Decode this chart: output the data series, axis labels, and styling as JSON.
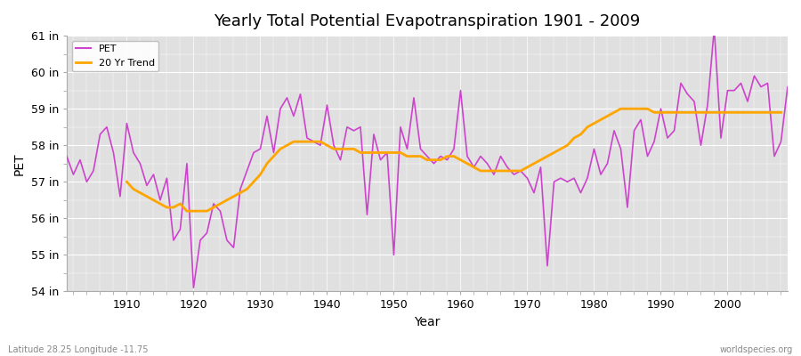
{
  "title": "Yearly Total Potential Evapotranspiration 1901 - 2009",
  "xlabel": "Year",
  "ylabel": "PET",
  "subtitle_left": "Latitude 28.25 Longitude -11.75",
  "subtitle_right": "worldspecies.org",
  "legend_pet": "PET",
  "legend_trend": "20 Yr Trend",
  "pet_color": "#CC44CC",
  "trend_color": "#FFA500",
  "fig_bg_color": "#FFFFFF",
  "plot_bg_color": "#E0E0E0",
  "grid_color": "#FFFFFF",
  "ylim": [
    54,
    61
  ],
  "yticks": [
    54,
    55,
    56,
    57,
    58,
    59,
    60,
    61
  ],
  "ytick_labels": [
    "54 in",
    "55 in",
    "56 in",
    "57 in",
    "58 in",
    "59 in",
    "60 in",
    "61 in"
  ],
  "xmin": 1901,
  "xmax": 2009,
  "xticks": [
    1910,
    1920,
    1930,
    1940,
    1950,
    1960,
    1970,
    1980,
    1990,
    2000
  ],
  "years": [
    1901,
    1902,
    1903,
    1904,
    1905,
    1906,
    1907,
    1908,
    1909,
    1910,
    1911,
    1912,
    1913,
    1914,
    1915,
    1916,
    1917,
    1918,
    1919,
    1920,
    1921,
    1922,
    1923,
    1924,
    1925,
    1926,
    1927,
    1928,
    1929,
    1930,
    1931,
    1932,
    1933,
    1934,
    1935,
    1936,
    1937,
    1938,
    1939,
    1940,
    1941,
    1942,
    1943,
    1944,
    1945,
    1946,
    1947,
    1948,
    1949,
    1950,
    1951,
    1952,
    1953,
    1954,
    1955,
    1956,
    1957,
    1958,
    1959,
    1960,
    1961,
    1962,
    1963,
    1964,
    1965,
    1966,
    1967,
    1968,
    1969,
    1970,
    1971,
    1972,
    1973,
    1974,
    1975,
    1976,
    1977,
    1978,
    1979,
    1980,
    1981,
    1982,
    1983,
    1984,
    1985,
    1986,
    1987,
    1988,
    1989,
    1990,
    1991,
    1992,
    1993,
    1994,
    1995,
    1996,
    1997,
    1998,
    1999,
    2000,
    2001,
    2002,
    2003,
    2004,
    2005,
    2006,
    2007,
    2008,
    2009
  ],
  "pet_values": [
    57.7,
    57.2,
    57.6,
    57.0,
    57.3,
    58.3,
    58.5,
    57.8,
    56.6,
    58.6,
    57.8,
    57.5,
    56.9,
    57.2,
    56.5,
    57.1,
    55.4,
    55.7,
    57.5,
    54.1,
    55.4,
    55.6,
    56.4,
    56.2,
    55.4,
    55.2,
    56.8,
    57.3,
    57.8,
    57.9,
    58.8,
    57.8,
    59.0,
    59.3,
    58.8,
    59.4,
    58.2,
    58.1,
    58.0,
    59.1,
    58.0,
    57.6,
    58.5,
    58.4,
    58.5,
    56.1,
    58.3,
    57.6,
    57.8,
    55.0,
    58.5,
    57.9,
    59.3,
    57.9,
    57.7,
    57.5,
    57.7,
    57.6,
    57.9,
    59.5,
    57.7,
    57.4,
    57.7,
    57.5,
    57.2,
    57.7,
    57.4,
    57.2,
    57.3,
    57.1,
    56.7,
    57.4,
    54.7,
    57.0,
    57.1,
    57.0,
    57.1,
    56.7,
    57.1,
    57.9,
    57.2,
    57.5,
    58.4,
    57.9,
    56.3,
    58.4,
    58.7,
    57.7,
    58.1,
    59.0,
    58.2,
    58.4,
    59.7,
    59.4,
    59.2,
    58.0,
    59.1,
    61.2,
    58.2,
    59.5,
    59.5,
    59.7,
    59.2,
    59.9,
    59.6,
    59.7,
    57.7,
    58.1,
    59.6
  ],
  "trend_start_year": 1910,
  "trend_values": [
    57.0,
    56.8,
    56.7,
    56.6,
    56.5,
    56.4,
    56.3,
    56.3,
    56.4,
    56.2,
    56.2,
    56.2,
    56.2,
    56.3,
    56.4,
    56.5,
    56.6,
    56.7,
    56.8,
    57.0,
    57.2,
    57.5,
    57.7,
    57.9,
    58.0,
    58.1,
    58.1,
    58.1,
    58.1,
    58.1,
    58.0,
    57.9,
    57.9,
    57.9,
    57.9,
    57.8,
    57.8,
    57.8,
    57.8,
    57.8,
    57.8,
    57.8,
    57.7,
    57.7,
    57.7,
    57.6,
    57.6,
    57.6,
    57.7,
    57.7,
    57.6,
    57.5,
    57.4,
    57.3,
    57.3,
    57.3,
    57.3,
    57.3,
    57.3,
    57.3,
    57.4,
    57.5,
    57.6,
    57.7,
    57.8,
    57.9,
    58.0,
    58.2,
    58.3,
    58.5,
    58.6,
    58.7,
    58.8,
    58.9,
    59.0,
    59.0,
    59.0,
    59.0,
    59.0,
    58.9,
    58.9,
    58.9,
    58.9,
    58.9,
    58.9,
    58.9,
    58.9,
    58.9,
    58.9,
    58.9,
    58.9,
    58.9,
    58.9,
    58.9,
    58.9,
    58.9,
    58.9,
    58.9,
    58.9
  ],
  "title_fontsize": 13,
  "label_fontsize": 10,
  "tick_fontsize": 9,
  "annot_fontsize": 7,
  "pet_linewidth": 1.2,
  "trend_linewidth": 2.0
}
